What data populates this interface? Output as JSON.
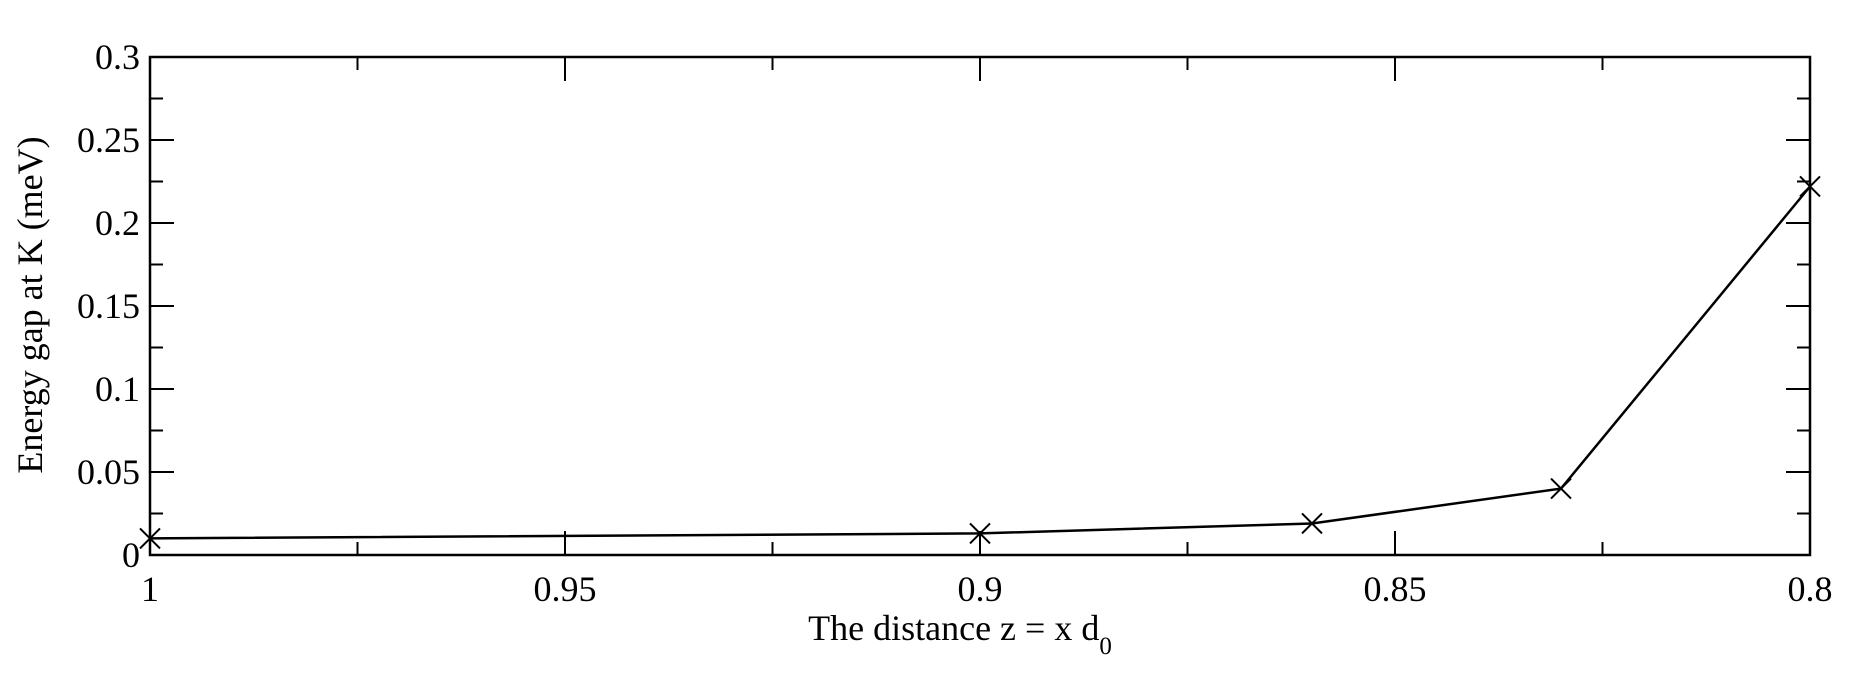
{
  "chart_data": {
    "type": "line",
    "title": "",
    "xlabel_main": "The distance z = x d",
    "xlabel_sub": "0",
    "ylabel": "Energy gap at K (meV)",
    "xlim": [
      1.0,
      0.8
    ],
    "ylim": [
      0,
      0.3
    ],
    "x_ticks": [
      1,
      0.95,
      0.9,
      0.85,
      0.8
    ],
    "x_tick_labels": [
      "1",
      "0.95",
      "0.9",
      "0.85",
      "0.8"
    ],
    "x_minor_ticks": [
      0.975,
      0.925,
      0.875,
      0.825
    ],
    "y_ticks": [
      0,
      0.05,
      0.1,
      0.15,
      0.2,
      0.25,
      0.3
    ],
    "y_tick_labels": [
      "0",
      "0.05",
      "0.1",
      "0.15",
      "0.2",
      "0.25",
      "0.3"
    ],
    "y_minor_ticks": [
      0.025,
      0.075,
      0.125,
      0.175,
      0.225,
      0.275
    ],
    "grid": false,
    "series": [
      {
        "marker": "x",
        "color": "#000000",
        "x": [
          1.0,
          0.9,
          0.86,
          0.83,
          0.8
        ],
        "y": [
          0.01,
          0.013,
          0.019,
          0.04,
          0.222
        ]
      }
    ]
  }
}
